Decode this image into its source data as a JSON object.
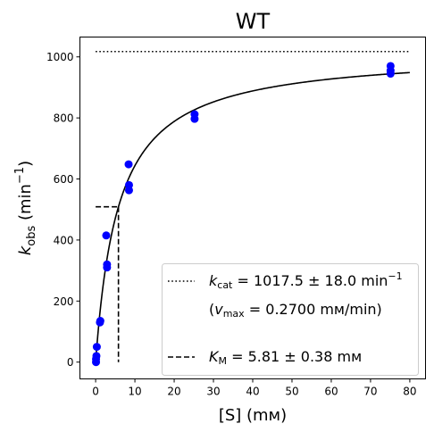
{
  "chart_data": {
    "type": "scatter",
    "title": "WT",
    "xlabel": "[S] (mм)",
    "ylabel": {
      "main": "k",
      "sub": "obs",
      "unit_open": " (min",
      "unit_sup": "−1",
      "unit_close": ")"
    },
    "xlim": [
      -4,
      84
    ],
    "ylim": [
      -55,
      1065
    ],
    "xticks": [
      0,
      10,
      20,
      30,
      40,
      50,
      60,
      70,
      80
    ],
    "yticks": [
      0,
      200,
      400,
      600,
      800,
      1000
    ],
    "grid": false,
    "legend_position": "bottom-right",
    "points": [
      {
        "x": 0.1,
        "y": 0
      },
      {
        "x": 0.1,
        "y": 10
      },
      {
        "x": 0.2,
        "y": 20
      },
      {
        "x": 0.3,
        "y": 50
      },
      {
        "x": 1.1,
        "y": 130
      },
      {
        "x": 1.2,
        "y": 135
      },
      {
        "x": 2.7,
        "y": 415
      },
      {
        "x": 2.9,
        "y": 310
      },
      {
        "x": 2.9,
        "y": 320
      },
      {
        "x": 8.4,
        "y": 648
      },
      {
        "x": 8.5,
        "y": 580
      },
      {
        "x": 8.5,
        "y": 563
      },
      {
        "x": 25.2,
        "y": 812
      },
      {
        "x": 25.2,
        "y": 797
      },
      {
        "x": 75.1,
        "y": 970
      },
      {
        "x": 75.1,
        "y": 955
      },
      {
        "x": 75.1,
        "y": 945
      }
    ],
    "fit": {
      "model": "Michaelis-Menten",
      "kcat": 1017.5,
      "Km": 5.81,
      "x_range": [
        0,
        80
      ]
    },
    "kcat_line": {
      "y": 1017.5,
      "x_range": [
        0,
        80
      ]
    },
    "km_line": {
      "x": 5.81,
      "y": 508.75
    },
    "legend": {
      "kcat_label": {
        "k": "k",
        "sub": "cat",
        "text": " = 1017.5 ± 18.0 min",
        "sup": "−1"
      },
      "vmax_label": {
        "open": "(",
        "v": "v",
        "sub": "max",
        "text": " = 0.2700 mм/min)"
      },
      "km_label": {
        "k": "K",
        "sub": "M",
        "text": " = 5.81 ± 0.38 mм"
      }
    },
    "colors": {
      "points": "#0000ff",
      "lines": "#000000",
      "axes": "#000000"
    }
  }
}
